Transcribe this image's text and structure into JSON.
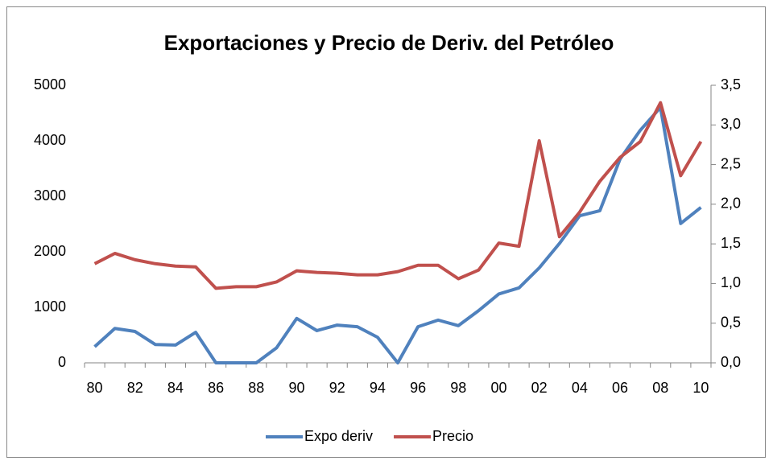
{
  "chart_data": {
    "type": "line",
    "title": "Exportaciones y Precio de Deriv. del Petróleo",
    "categories": [
      "80",
      null,
      "82",
      null,
      "84",
      null,
      "86",
      null,
      "88",
      null,
      "90",
      null,
      "92",
      null,
      "94",
      null,
      "96",
      null,
      "98",
      null,
      "00",
      null,
      "02",
      null,
      "04",
      null,
      "06",
      null,
      "08",
      null,
      "10"
    ],
    "series": [
      {
        "name": "Expo deriv",
        "color": "#4f81bd",
        "values": [
          290,
          620,
          565,
          330,
          320,
          550,
          0,
          0,
          0,
          270,
          800,
          580,
          680,
          650,
          460,
          0,
          650,
          770,
          670,
          940,
          1240,
          1350,
          1710,
          2150,
          2650,
          2740,
          3670,
          4190,
          4600,
          2510,
          2800
        ]
      },
      {
        "name": "Precio",
        "color": "#c0504d",
        "axis": "y2",
        "values": [
          1.25,
          1.38,
          1.3,
          1.25,
          1.22,
          1.21,
          0.94,
          0.96,
          0.96,
          1.02,
          1.16,
          1.14,
          1.13,
          1.11,
          1.11,
          1.15,
          1.23,
          1.23,
          1.06,
          1.17,
          1.51,
          1.47,
          2.8,
          1.59,
          1.9,
          2.29,
          2.59,
          2.79,
          3.28,
          2.36,
          2.79
        ]
      }
    ],
    "ylim": [
      0,
      5000
    ],
    "yticks": [
      0,
      1000,
      2000,
      3000,
      4000,
      5000
    ],
    "y2lim": [
      0,
      3.5
    ],
    "y2ticks": [
      {
        "value": 0,
        "label": "0,0"
      },
      {
        "value": 0.5,
        "label": "0,5"
      },
      {
        "value": 1,
        "label": "1,0"
      },
      {
        "value": 1.5,
        "label": "1,5"
      },
      {
        "value": 2,
        "label": "2,0"
      },
      {
        "value": 2.5,
        "label": "2,5"
      },
      {
        "value": 3,
        "label": "3,0"
      },
      {
        "value": 3.5,
        "label": "3,5"
      }
    ],
    "legend": "bottom"
  }
}
